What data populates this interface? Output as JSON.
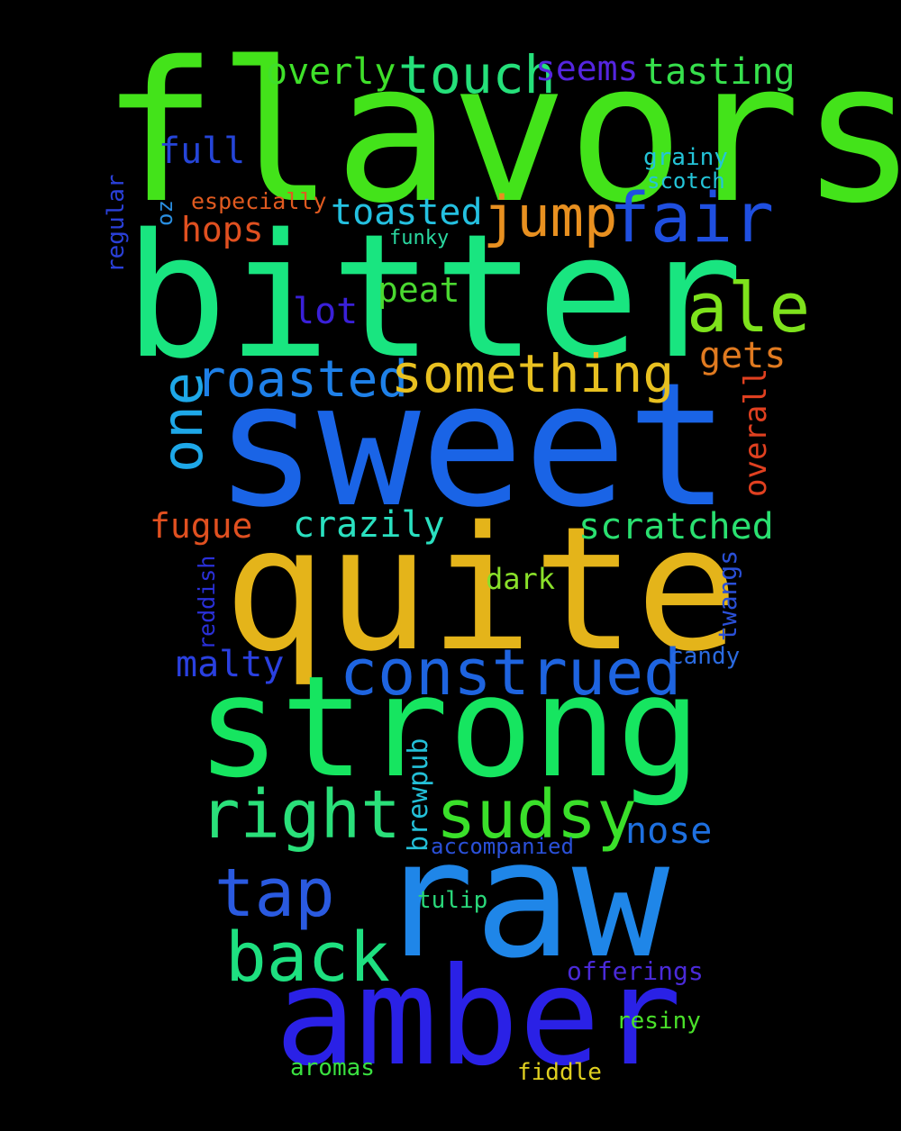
{
  "background": "#000000",
  "words": [
    {
      "text": "flavors",
      "color": "#43e31a"
    },
    {
      "text": "bitter",
      "color": "#19e580"
    },
    {
      "text": "sweet",
      "color": "#1a64e6"
    },
    {
      "text": "quite",
      "color": "#e4b41a"
    },
    {
      "text": "strong",
      "color": "#16e560"
    },
    {
      "text": "raw",
      "color": "#1f86e8"
    },
    {
      "text": "amber",
      "color": "#2a21e6"
    },
    {
      "text": "fair",
      "color": "#1f4fe0"
    },
    {
      "text": "jump",
      "color": "#e89020"
    },
    {
      "text": "ale",
      "color": "#7ee21c"
    },
    {
      "text": "touch",
      "color": "#25e07a"
    },
    {
      "text": "overly",
      "color": "#3fe02a"
    },
    {
      "text": "seems",
      "color": "#5525e0"
    },
    {
      "text": "tasting",
      "color": "#36e04c"
    },
    {
      "text": "full",
      "color": "#2545d8"
    },
    {
      "text": "grainy",
      "color": "#24c4d8"
    },
    {
      "text": "scotch",
      "color": "#24c4d8"
    },
    {
      "text": "especially",
      "color": "#e05a20"
    },
    {
      "text": "toasted",
      "color": "#24c0e0"
    },
    {
      "text": "oz",
      "color": "#2a8ee0"
    },
    {
      "text": "hops",
      "color": "#e05020"
    },
    {
      "text": "funky",
      "color": "#2ad8a0"
    },
    {
      "text": "regular",
      "color": "#2a40d8"
    },
    {
      "text": "peat",
      "color": "#4ad830"
    },
    {
      "text": "lot",
      "color": "#3a20d8"
    },
    {
      "text": "gets",
      "color": "#e07a20"
    },
    {
      "text": "one",
      "color": "#1ea8e8"
    },
    {
      "text": "roasted",
      "color": "#1e80e8"
    },
    {
      "text": "something",
      "color": "#e8c020"
    },
    {
      "text": "overall",
      "color": "#e04020"
    },
    {
      "text": "fugue",
      "color": "#e05020"
    },
    {
      "text": "crazily",
      "color": "#2ae0c0"
    },
    {
      "text": "scratched",
      "color": "#2ae070"
    },
    {
      "text": "reddish",
      "color": "#2a30d8"
    },
    {
      "text": "dark",
      "color": "#8ae02a"
    },
    {
      "text": "twangs",
      "color": "#2a50d8"
    },
    {
      "text": "malty",
      "color": "#2a40e0"
    },
    {
      "text": "construed",
      "color": "#1e64e0"
    },
    {
      "text": "candy",
      "color": "#2a6ae0"
    },
    {
      "text": "right",
      "color": "#2ae07a"
    },
    {
      "text": "sudsy",
      "color": "#3ae02a"
    },
    {
      "text": "nose",
      "color": "#1e70e0"
    },
    {
      "text": "brewpub",
      "color": "#24c0d8"
    },
    {
      "text": "accompanied",
      "color": "#2a50d8"
    },
    {
      "text": "tap",
      "color": "#2a5ae0"
    },
    {
      "text": "back",
      "color": "#1ee080"
    },
    {
      "text": "tulip",
      "color": "#2ad87a"
    },
    {
      "text": "offerings",
      "color": "#4a2ad8"
    },
    {
      "text": "resiny",
      "color": "#4ae02a"
    },
    {
      "text": "aromas",
      "color": "#3ae040"
    },
    {
      "text": "fiddle",
      "color": "#e0d020"
    }
  ]
}
